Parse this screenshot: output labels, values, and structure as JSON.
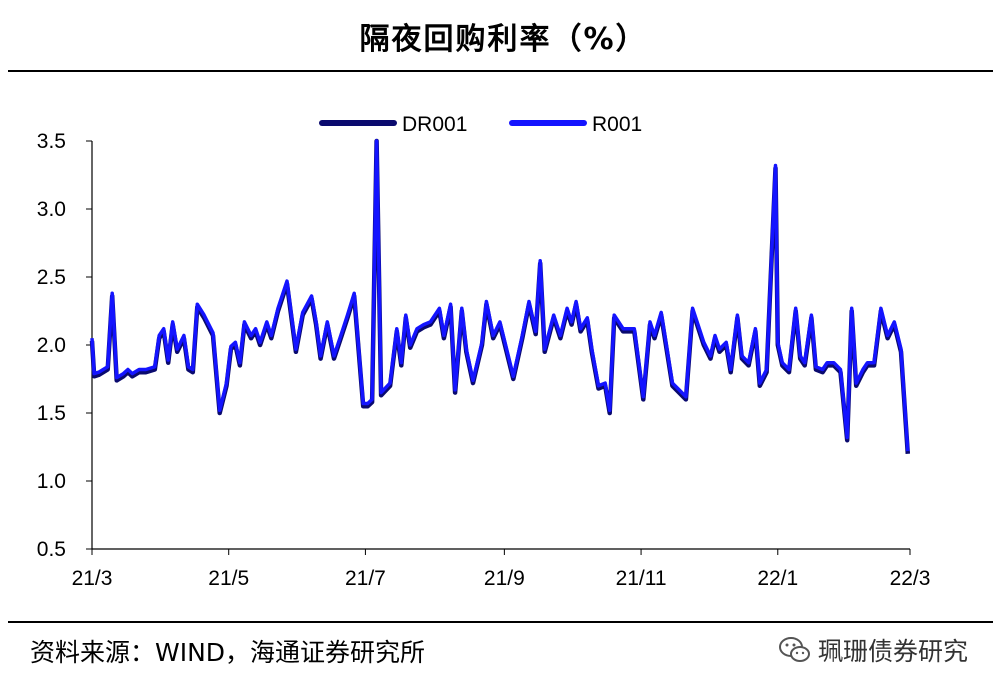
{
  "title": "隔夜回购利率（%）",
  "source": "资料来源：WIND，海通证券研究所",
  "brand": "珮珊债券研究",
  "chart_data": {
    "type": "line",
    "title": "隔夜回购利率（%）",
    "xlabel": "",
    "ylabel": "",
    "ylim": [
      0.5,
      3.5
    ],
    "yticks": [
      "3.5",
      "3.0",
      "2.5",
      "2.0",
      "1.5",
      "1.0",
      "0.5"
    ],
    "xticks": [
      "21/3",
      "21/5",
      "21/7",
      "21/9",
      "21/11",
      "22/1",
      "22/3"
    ],
    "xrange": [
      "2021-03-01",
      "2022-03-01"
    ],
    "legend": "top-center",
    "grid": false,
    "series": [
      {
        "name": "DR001",
        "color": "#0a0a6e",
        "points": [
          [
            "2021-03-01",
            2.03
          ],
          [
            "2021-03-02",
            1.77
          ],
          [
            "2021-03-04",
            1.78
          ],
          [
            "2021-03-06",
            1.8
          ],
          [
            "2021-03-08",
            1.82
          ],
          [
            "2021-03-10",
            2.36
          ],
          [
            "2021-03-12",
            1.74
          ],
          [
            "2021-03-15",
            1.77
          ],
          [
            "2021-03-17",
            1.8
          ],
          [
            "2021-03-19",
            1.77
          ],
          [
            "2021-03-22",
            1.8
          ],
          [
            "2021-03-25",
            1.8
          ],
          [
            "2021-03-29",
            1.82
          ],
          [
            "2021-03-31",
            2.05
          ],
          [
            "2021-04-02",
            2.1
          ],
          [
            "2021-04-04",
            1.87
          ],
          [
            "2021-04-06",
            2.15
          ],
          [
            "2021-04-08",
            1.95
          ],
          [
            "2021-04-11",
            2.05
          ],
          [
            "2021-04-13",
            1.82
          ],
          [
            "2021-04-15",
            1.8
          ],
          [
            "2021-04-17",
            2.28
          ],
          [
            "2021-04-20",
            2.2
          ],
          [
            "2021-04-24",
            2.07
          ],
          [
            "2021-04-27",
            1.5
          ],
          [
            "2021-04-30",
            1.7
          ],
          [
            "2021-05-02",
            1.97
          ],
          [
            "2021-05-04",
            2.0
          ],
          [
            "2021-05-06",
            1.85
          ],
          [
            "2021-05-08",
            2.15
          ],
          [
            "2021-05-11",
            2.05
          ],
          [
            "2021-05-13",
            2.1
          ],
          [
            "2021-05-15",
            2.0
          ],
          [
            "2021-05-18",
            2.15
          ],
          [
            "2021-05-20",
            2.05
          ],
          [
            "2021-05-23",
            2.25
          ],
          [
            "2021-05-27",
            2.45
          ],
          [
            "2021-05-31",
            1.95
          ],
          [
            "2021-06-03",
            2.22
          ],
          [
            "2021-06-07",
            2.34
          ],
          [
            "2021-06-09",
            2.15
          ],
          [
            "2021-06-11",
            1.9
          ],
          [
            "2021-06-14",
            2.15
          ],
          [
            "2021-06-17",
            1.9
          ],
          [
            "2021-06-20",
            2.05
          ],
          [
            "2021-06-23",
            2.2
          ],
          [
            "2021-06-26",
            2.36
          ],
          [
            "2021-06-30",
            1.55
          ],
          [
            "2021-07-02",
            1.55
          ],
          [
            "2021-07-04",
            1.58
          ],
          [
            "2021-07-06",
            3.5
          ],
          [
            "2021-07-08",
            1.63
          ],
          [
            "2021-07-12",
            1.7
          ],
          [
            "2021-07-15",
            2.1
          ],
          [
            "2021-07-17",
            1.85
          ],
          [
            "2021-07-19",
            2.2
          ],
          [
            "2021-07-21",
            1.98
          ],
          [
            "2021-07-24",
            2.1
          ],
          [
            "2021-07-27",
            2.13
          ],
          [
            "2021-07-30",
            2.15
          ],
          [
            "2021-08-03",
            2.25
          ],
          [
            "2021-08-05",
            2.05
          ],
          [
            "2021-08-08",
            2.28
          ],
          [
            "2021-08-10",
            1.65
          ],
          [
            "2021-08-13",
            2.25
          ],
          [
            "2021-08-15",
            1.95
          ],
          [
            "2021-08-18",
            1.72
          ],
          [
            "2021-08-22",
            2.0
          ],
          [
            "2021-08-24",
            2.3
          ],
          [
            "2021-08-27",
            2.05
          ],
          [
            "2021-08-30",
            2.15
          ],
          [
            "2021-09-02",
            1.95
          ],
          [
            "2021-09-05",
            1.75
          ],
          [
            "2021-09-09",
            2.05
          ],
          [
            "2021-09-12",
            2.3
          ],
          [
            "2021-09-15",
            2.08
          ],
          [
            "2021-09-17",
            2.6
          ],
          [
            "2021-09-19",
            1.95
          ],
          [
            "2021-09-23",
            2.2
          ],
          [
            "2021-09-26",
            2.05
          ],
          [
            "2021-09-29",
            2.25
          ],
          [
            "2021-10-01",
            2.15
          ],
          [
            "2021-10-03",
            2.3
          ],
          [
            "2021-10-05",
            2.1
          ],
          [
            "2021-10-08",
            2.18
          ],
          [
            "2021-10-10",
            1.95
          ],
          [
            "2021-10-13",
            1.68
          ],
          [
            "2021-10-16",
            1.7
          ],
          [
            "2021-10-18",
            1.5
          ],
          [
            "2021-10-20",
            2.2
          ],
          [
            "2021-10-24",
            2.1
          ],
          [
            "2021-10-26",
            2.1
          ],
          [
            "2021-10-29",
            2.1
          ],
          [
            "2021-11-02",
            1.6
          ],
          [
            "2021-11-05",
            2.15
          ],
          [
            "2021-11-07",
            2.05
          ],
          [
            "2021-11-10",
            2.22
          ],
          [
            "2021-11-15",
            1.7
          ],
          [
            "2021-11-18",
            1.65
          ],
          [
            "2021-11-21",
            1.6
          ],
          [
            "2021-11-24",
            2.25
          ],
          [
            "2021-11-26",
            2.15
          ],
          [
            "2021-11-29",
            2.0
          ],
          [
            "2021-12-02",
            1.9
          ],
          [
            "2021-12-04",
            2.05
          ],
          [
            "2021-12-06",
            1.95
          ],
          [
            "2021-12-09",
            2.0
          ],
          [
            "2021-12-11",
            1.8
          ],
          [
            "2021-12-14",
            2.2
          ],
          [
            "2021-12-16",
            1.9
          ],
          [
            "2021-12-19",
            1.85
          ],
          [
            "2021-12-22",
            2.1
          ],
          [
            "2021-12-24",
            1.7
          ],
          [
            "2021-12-27",
            1.8
          ],
          [
            "2021-12-31",
            3.3
          ],
          [
            "2022-01-01",
            2.0
          ],
          [
            "2022-01-03",
            1.85
          ],
          [
            "2022-01-06",
            1.8
          ],
          [
            "2022-01-09",
            2.25
          ],
          [
            "2022-01-11",
            1.9
          ],
          [
            "2022-01-13",
            1.85
          ],
          [
            "2022-01-16",
            2.2
          ],
          [
            "2022-01-18",
            1.82
          ],
          [
            "2022-01-21",
            1.8
          ],
          [
            "2022-01-23",
            1.85
          ],
          [
            "2022-01-26",
            1.85
          ],
          [
            "2022-01-29",
            1.8
          ],
          [
            "2022-02-01",
            1.3
          ],
          [
            "2022-02-03",
            2.25
          ],
          [
            "2022-02-05",
            1.7
          ],
          [
            "2022-02-08",
            1.8
          ],
          [
            "2022-02-10",
            1.85
          ],
          [
            "2022-02-13",
            1.85
          ],
          [
            "2022-02-16",
            2.25
          ],
          [
            "2022-02-19",
            2.05
          ],
          [
            "2022-02-22",
            2.15
          ],
          [
            "2022-02-25",
            1.95
          ],
          [
            "2022-02-28",
            1.2
          ]
        ]
      },
      {
        "name": "R001",
        "color": "#1414ff",
        "points": []
      }
    ]
  }
}
